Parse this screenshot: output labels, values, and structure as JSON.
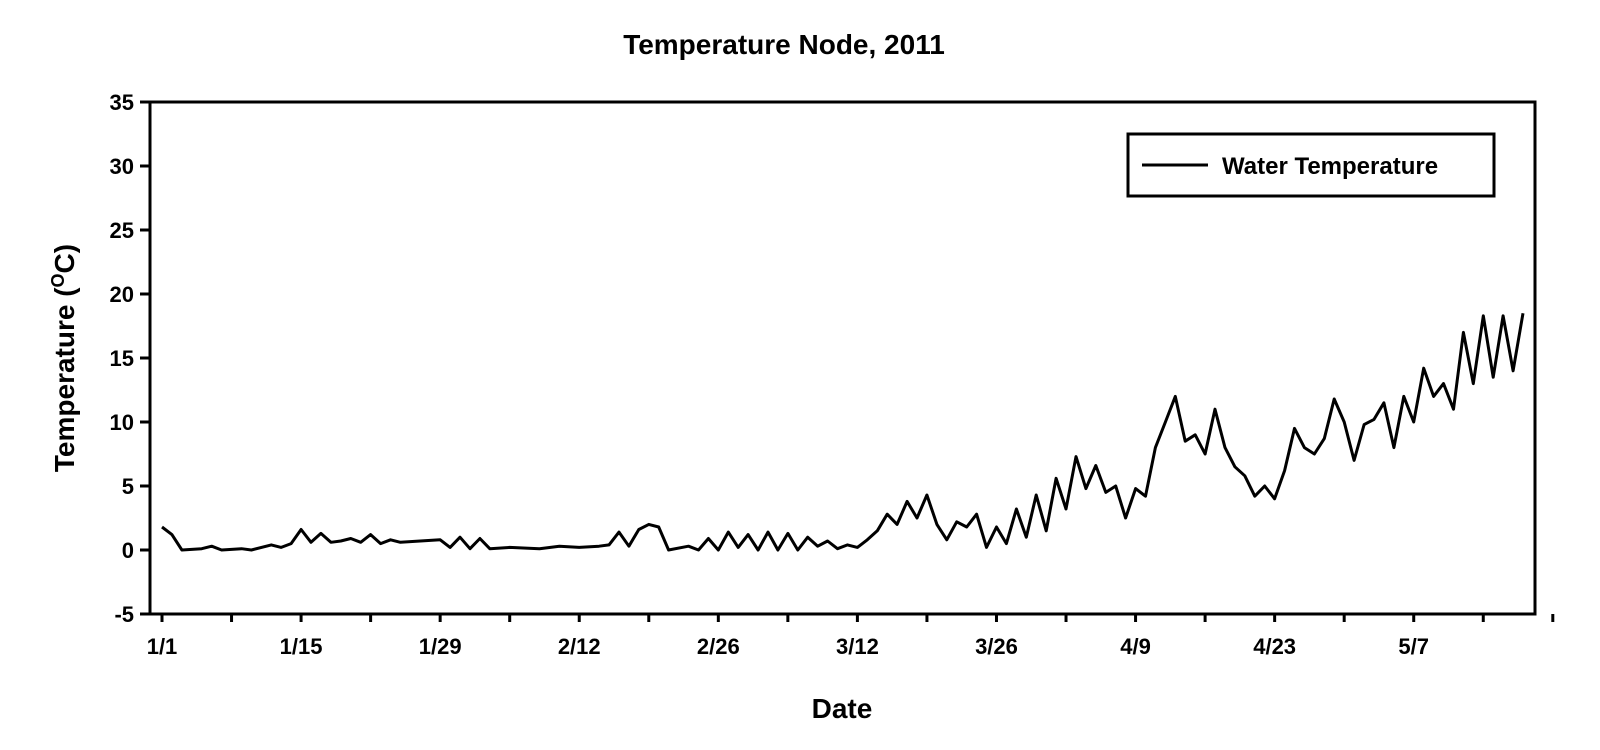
{
  "chart_data": {
    "type": "line",
    "title": "Temperature Node, 2011",
    "xlabel": "Date",
    "ylabel_main": "Temperature (",
    "ylabel_sup": "O",
    "ylabel_end": "C)",
    "ylim": [
      -5,
      35
    ],
    "yticks": [
      "-5",
      "0",
      "5",
      "10",
      "15",
      "20",
      "25",
      "30",
      "35"
    ],
    "xlim": [
      "2011-01-01",
      "2011-05-18"
    ],
    "xtick_labels": [
      "1/1",
      "1/15",
      "1/29",
      "2/12",
      "2/26",
      "3/12",
      "3/26",
      "4/9",
      "4/23",
      "5/7"
    ],
    "legend_position": "top-right",
    "grid": false,
    "series": [
      {
        "name": "Water Temperature",
        "color": "#000000",
        "points": [
          [
            "2011-01-01",
            1.8
          ],
          [
            "2011-01-02",
            1.2
          ],
          [
            "2011-01-03",
            0.0
          ],
          [
            "2011-01-05",
            0.1
          ],
          [
            "2011-01-06",
            0.3
          ],
          [
            "2011-01-07",
            0.0
          ],
          [
            "2011-01-09",
            0.1
          ],
          [
            "2011-01-10",
            0.0
          ],
          [
            "2011-01-12",
            0.4
          ],
          [
            "2011-01-13",
            0.2
          ],
          [
            "2011-01-14",
            0.5
          ],
          [
            "2011-01-15",
            1.6
          ],
          [
            "2011-01-16",
            0.6
          ],
          [
            "2011-01-17",
            1.3
          ],
          [
            "2011-01-18",
            0.6
          ],
          [
            "2011-01-19",
            0.7
          ],
          [
            "2011-01-20",
            0.9
          ],
          [
            "2011-01-21",
            0.6
          ],
          [
            "2011-01-22",
            1.2
          ],
          [
            "2011-01-23",
            0.5
          ],
          [
            "2011-01-24",
            0.8
          ],
          [
            "2011-01-25",
            0.6
          ],
          [
            "2011-01-27",
            0.7
          ],
          [
            "2011-01-29",
            0.8
          ],
          [
            "2011-01-30",
            0.2
          ],
          [
            "2011-01-31",
            1.0
          ],
          [
            "2011-02-01",
            0.1
          ],
          [
            "2011-02-02",
            0.9
          ],
          [
            "2011-02-03",
            0.1
          ],
          [
            "2011-02-05",
            0.2
          ],
          [
            "2011-02-08",
            0.1
          ],
          [
            "2011-02-10",
            0.3
          ],
          [
            "2011-02-12",
            0.2
          ],
          [
            "2011-02-14",
            0.3
          ],
          [
            "2011-02-15",
            0.4
          ],
          [
            "2011-02-16",
            1.4
          ],
          [
            "2011-02-17",
            0.3
          ],
          [
            "2011-02-18",
            1.6
          ],
          [
            "2011-02-19",
            2.0
          ],
          [
            "2011-02-20",
            1.8
          ],
          [
            "2011-02-21",
            0.0
          ],
          [
            "2011-02-23",
            0.3
          ],
          [
            "2011-02-24",
            0.0
          ],
          [
            "2011-02-25",
            0.9
          ],
          [
            "2011-02-26",
            0.0
          ],
          [
            "2011-02-27",
            1.4
          ],
          [
            "2011-02-28",
            0.2
          ],
          [
            "2011-03-01",
            1.2
          ],
          [
            "2011-03-02",
            0.0
          ],
          [
            "2011-03-03",
            1.4
          ],
          [
            "2011-03-04",
            0.0
          ],
          [
            "2011-03-05",
            1.3
          ],
          [
            "2011-03-06",
            0.0
          ],
          [
            "2011-03-07",
            1.0
          ],
          [
            "2011-03-08",
            0.3
          ],
          [
            "2011-03-09",
            0.7
          ],
          [
            "2011-03-10",
            0.1
          ],
          [
            "2011-03-11",
            0.4
          ],
          [
            "2011-03-12",
            0.2
          ],
          [
            "2011-03-13",
            0.8
          ],
          [
            "2011-03-14",
            1.5
          ],
          [
            "2011-03-15",
            2.8
          ],
          [
            "2011-03-16",
            2.0
          ],
          [
            "2011-03-17",
            3.8
          ],
          [
            "2011-03-18",
            2.5
          ],
          [
            "2011-03-19",
            4.3
          ],
          [
            "2011-03-20",
            2.0
          ],
          [
            "2011-03-21",
            0.8
          ],
          [
            "2011-03-22",
            2.2
          ],
          [
            "2011-03-23",
            1.8
          ],
          [
            "2011-03-24",
            2.8
          ],
          [
            "2011-03-25",
            0.2
          ],
          [
            "2011-03-26",
            1.8
          ],
          [
            "2011-03-27",
            0.5
          ],
          [
            "2011-03-28",
            3.2
          ],
          [
            "2011-03-29",
            1.0
          ],
          [
            "2011-03-30",
            4.3
          ],
          [
            "2011-03-31",
            1.5
          ],
          [
            "2011-04-01",
            5.6
          ],
          [
            "2011-04-02",
            3.2
          ],
          [
            "2011-04-03",
            7.3
          ],
          [
            "2011-04-04",
            4.8
          ],
          [
            "2011-04-05",
            6.6
          ],
          [
            "2011-04-06",
            4.5
          ],
          [
            "2011-04-07",
            5.0
          ],
          [
            "2011-04-08",
            2.5
          ],
          [
            "2011-04-09",
            4.8
          ],
          [
            "2011-04-10",
            4.2
          ],
          [
            "2011-04-11",
            8.0
          ],
          [
            "2011-04-12",
            10.0
          ],
          [
            "2011-04-13",
            12.0
          ],
          [
            "2011-04-14",
            8.5
          ],
          [
            "2011-04-15",
            9.0
          ],
          [
            "2011-04-16",
            7.5
          ],
          [
            "2011-04-17",
            11.0
          ],
          [
            "2011-04-18",
            8.0
          ],
          [
            "2011-04-19",
            6.5
          ],
          [
            "2011-04-20",
            5.8
          ],
          [
            "2011-04-21",
            4.2
          ],
          [
            "2011-04-22",
            5.0
          ],
          [
            "2011-04-23",
            4.0
          ],
          [
            "2011-04-24",
            6.2
          ],
          [
            "2011-04-25",
            9.5
          ],
          [
            "2011-04-26",
            8.0
          ],
          [
            "2011-04-27",
            7.5
          ],
          [
            "2011-04-28",
            8.7
          ],
          [
            "2011-04-29",
            11.8
          ],
          [
            "2011-04-30",
            10.0
          ],
          [
            "2011-05-01",
            7.0
          ],
          [
            "2011-05-02",
            9.8
          ],
          [
            "2011-05-03",
            10.2
          ],
          [
            "2011-05-04",
            11.5
          ],
          [
            "2011-05-05",
            8.0
          ],
          [
            "2011-05-06",
            12.0
          ],
          [
            "2011-05-07",
            10.0
          ],
          [
            "2011-05-08",
            14.2
          ],
          [
            "2011-05-09",
            12.0
          ],
          [
            "2011-05-10",
            13.0
          ],
          [
            "2011-05-11",
            11.0
          ],
          [
            "2011-05-12",
            17.0
          ],
          [
            "2011-05-13",
            13.0
          ],
          [
            "2011-05-14",
            18.3
          ],
          [
            "2011-05-15",
            13.5
          ],
          [
            "2011-05-16",
            18.3
          ],
          [
            "2011-05-17",
            14.0
          ],
          [
            "2011-05-18",
            18.5
          ]
        ]
      }
    ]
  }
}
